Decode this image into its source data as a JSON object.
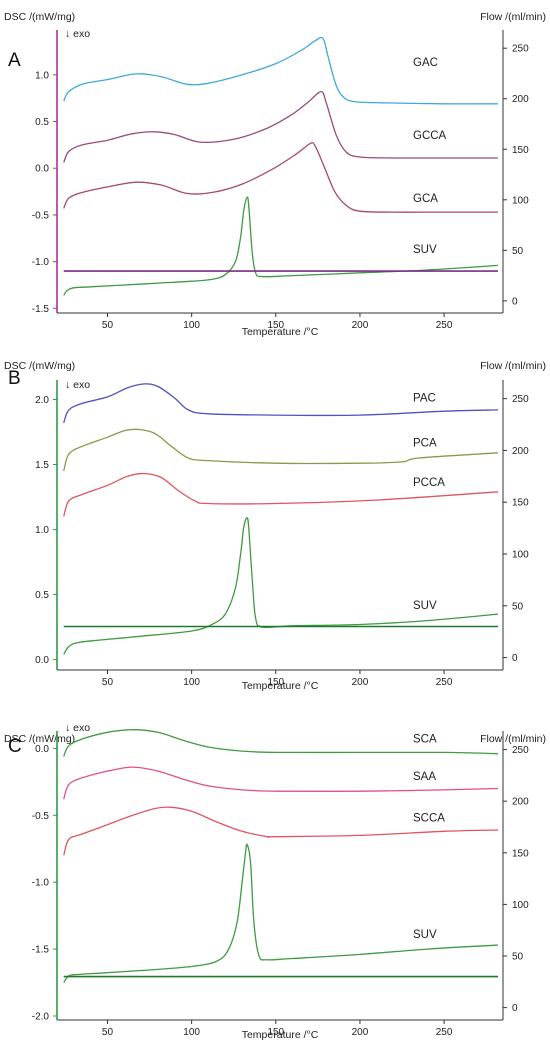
{
  "chart_data": [
    {
      "type": "line",
      "panel_label": "A",
      "title": "",
      "exo_label": "↓ exo",
      "xlabel": "Temperature /°C",
      "ylabel": "DSC /(mW/mg)",
      "y2label": "Flow /(ml/min)",
      "xlim": [
        20,
        285
      ],
      "ylim": [
        -1.55,
        1.48
      ],
      "y2lim": [
        -12,
        268
      ],
      "x_ticks": [
        50,
        100,
        150,
        200,
        250
      ],
      "y_ticks": [
        -1.5,
        -1.0,
        -0.5,
        0.0,
        0.5,
        1.0
      ],
      "y2_ticks": [
        0,
        50,
        100,
        150,
        200,
        250
      ],
      "axis_color": "#b0309a",
      "series": [
        {
          "name": "GAC",
          "color": "#3fa9db",
          "x": [
            24,
            27,
            35,
            50,
            67,
            82,
            97,
            110,
            130,
            150,
            165,
            173,
            178,
            181,
            186,
            191,
            198,
            215,
            250,
            282
          ],
          "y": [
            0.72,
            0.82,
            0.9,
            0.95,
            1.01,
            0.98,
            0.9,
            0.91,
            1.0,
            1.12,
            1.26,
            1.36,
            1.39,
            1.2,
            0.88,
            0.75,
            0.71,
            0.7,
            0.69,
            0.69
          ]
        },
        {
          "name": "GCCA",
          "color": "#9b4a7e",
          "x": [
            24,
            27,
            35,
            50,
            65,
            78,
            90,
            105,
            125,
            145,
            160,
            170,
            177,
            180,
            186,
            192,
            200,
            220,
            250,
            282
          ],
          "y": [
            0.06,
            0.18,
            0.25,
            0.3,
            0.37,
            0.39,
            0.36,
            0.28,
            0.31,
            0.43,
            0.58,
            0.72,
            0.82,
            0.7,
            0.35,
            0.17,
            0.12,
            0.11,
            0.11,
            0.11
          ]
        },
        {
          "name": "GCA",
          "color": "#a84a63",
          "x": [
            24,
            27,
            35,
            50,
            67,
            82,
            97,
            112,
            130,
            148,
            162,
            170,
            173,
            178,
            185,
            192,
            200,
            220,
            250,
            282
          ],
          "y": [
            -0.43,
            -0.32,
            -0.26,
            -0.2,
            -0.15,
            -0.18,
            -0.27,
            -0.26,
            -0.17,
            -0.01,
            0.15,
            0.26,
            0.25,
            0.05,
            -0.25,
            -0.4,
            -0.46,
            -0.47,
            -0.47,
            -0.47
          ]
        },
        {
          "name": "SUV",
          "color": "#3f9a44",
          "x": [
            24,
            26,
            30,
            40,
            60,
            80,
            100,
            112,
            120,
            126,
            129,
            131,
            133,
            134,
            136,
            138,
            142,
            160,
            200,
            240,
            282
          ],
          "y": [
            -1.36,
            -1.31,
            -1.28,
            -1.27,
            -1.25,
            -1.23,
            -1.21,
            -1.19,
            -1.14,
            -1.0,
            -0.75,
            -0.45,
            -0.31,
            -0.42,
            -0.9,
            -1.12,
            -1.16,
            -1.15,
            -1.12,
            -1.09,
            -1.04
          ]
        },
        {
          "name": "",
          "color": "#7d2b8a",
          "axis": "y2",
          "x": [
            24,
            282
          ],
          "y": [
            29.5,
            29.5
          ]
        }
      ]
    },
    {
      "type": "line",
      "panel_label": "B",
      "title": "",
      "exo_label": "↓ exo",
      "xlabel": "Temperature /°C",
      "ylabel": "DSC /(mW/mg)",
      "y2label": "Flow /(ml/min)",
      "xlim": [
        20,
        285
      ],
      "ylim": [
        -0.08,
        2.15
      ],
      "y2lim": [
        -12,
        268
      ],
      "x_ticks": [
        50,
        100,
        150,
        200,
        250
      ],
      "y_ticks": [
        0.0,
        0.5,
        1.0,
        1.5,
        2.0
      ],
      "y2_ticks": [
        0,
        50,
        100,
        150,
        200,
        250
      ],
      "axis_color": "#2f9a4a",
      "series": [
        {
          "name": "PAC",
          "color": "#5050c0",
          "x": [
            24,
            27,
            35,
            50,
            62,
            72,
            80,
            90,
            98,
            110,
            150,
            200,
            250,
            282
          ],
          "y": [
            1.82,
            1.92,
            1.97,
            2.02,
            2.09,
            2.12,
            2.1,
            2.01,
            1.92,
            1.89,
            1.88,
            1.88,
            1.91,
            1.92
          ]
        },
        {
          "name": "PCA",
          "color": "#8a9a4a",
          "x": [
            24,
            27,
            35,
            50,
            60,
            68,
            78,
            88,
            98,
            110,
            150,
            200,
            225,
            235,
            282
          ],
          "y": [
            1.45,
            1.58,
            1.64,
            1.71,
            1.76,
            1.77,
            1.74,
            1.64,
            1.55,
            1.53,
            1.51,
            1.51,
            1.52,
            1.55,
            1.59
          ]
        },
        {
          "name": "PCCA",
          "color": "#e0555f",
          "x": [
            24,
            27,
            35,
            50,
            62,
            72,
            82,
            92,
            102,
            110,
            150,
            200,
            250,
            282
          ],
          "y": [
            1.1,
            1.22,
            1.27,
            1.34,
            1.41,
            1.43,
            1.4,
            1.3,
            1.22,
            1.2,
            1.2,
            1.22,
            1.26,
            1.29
          ]
        },
        {
          "name": "SUV",
          "color": "#3f9a44",
          "x": [
            24,
            27,
            32,
            45,
            70,
            100,
            112,
            120,
            126,
            129,
            131,
            133,
            134,
            136,
            138,
            142,
            160,
            200,
            240,
            282
          ],
          "y": [
            0.04,
            0.1,
            0.13,
            0.15,
            0.18,
            0.22,
            0.27,
            0.35,
            0.55,
            0.8,
            1.02,
            1.09,
            1.0,
            0.62,
            0.32,
            0.25,
            0.26,
            0.27,
            0.3,
            0.35
          ]
        },
        {
          "name": "",
          "color": "#1d7a2a",
          "axis": "y2",
          "x": [
            24,
            282
          ],
          "y": [
            30,
            30
          ]
        }
      ]
    },
    {
      "type": "line",
      "panel_label": "C",
      "title": "",
      "exo_label": "↓ exo",
      "xlabel": "Temperature /°C",
      "ylabel": "DSC /(mW/mg)",
      "y2label": "Flow /(ml/min)",
      "xlim": [
        20,
        285
      ],
      "ylim": [
        -2.03,
        0.13
      ],
      "y2lim": [
        -12,
        268
      ],
      "x_ticks": [
        50,
        100,
        150,
        200,
        250
      ],
      "y_ticks": [
        -2.0,
        -1.5,
        -1.0,
        -0.5,
        0.0
      ],
      "y2_ticks": [
        0,
        50,
        100,
        150,
        200,
        250
      ],
      "axis_color": "#2f9a4a",
      "series": [
        {
          "name": "SCA",
          "color": "#3f9a44",
          "x": [
            24,
            27,
            35,
            50,
            65,
            80,
            95,
            110,
            130,
            150,
            200,
            250,
            282
          ],
          "y": [
            -0.06,
            0.02,
            0.07,
            0.12,
            0.14,
            0.12,
            0.06,
            0.01,
            -0.02,
            -0.03,
            -0.03,
            -0.03,
            -0.04
          ]
        },
        {
          "name": "SAA",
          "color": "#e24d8d",
          "x": [
            24,
            27,
            35,
            50,
            65,
            80,
            95,
            110,
            130,
            150,
            200,
            250,
            282
          ],
          "y": [
            -0.38,
            -0.27,
            -0.22,
            -0.17,
            -0.14,
            -0.17,
            -0.23,
            -0.28,
            -0.31,
            -0.32,
            -0.32,
            -0.31,
            -0.3
          ]
        },
        {
          "name": "SCCA",
          "color": "#e0555f",
          "x": [
            24,
            27,
            35,
            50,
            65,
            78,
            88,
            100,
            115,
            130,
            145,
            150,
            200,
            250,
            282
          ],
          "y": [
            -0.8,
            -0.68,
            -0.64,
            -0.57,
            -0.5,
            -0.45,
            -0.44,
            -0.47,
            -0.55,
            -0.62,
            -0.66,
            -0.66,
            -0.65,
            -0.62,
            -0.61
          ]
        },
        {
          "name": "SUV",
          "color": "#3f9a44",
          "x": [
            24,
            27,
            32,
            45,
            70,
            100,
            115,
            122,
            127,
            130,
            132,
            133,
            135,
            137,
            140,
            145,
            160,
            200,
            240,
            282
          ],
          "y": [
            -1.75,
            -1.7,
            -1.69,
            -1.68,
            -1.66,
            -1.63,
            -1.59,
            -1.5,
            -1.3,
            -1.0,
            -0.78,
            -0.72,
            -0.85,
            -1.3,
            -1.55,
            -1.58,
            -1.57,
            -1.54,
            -1.5,
            -1.47
          ]
        },
        {
          "name": "",
          "color": "#1d7a2a",
          "axis": "y2",
          "x": [
            24,
            282
          ],
          "y": [
            30,
            30
          ]
        }
      ]
    }
  ]
}
